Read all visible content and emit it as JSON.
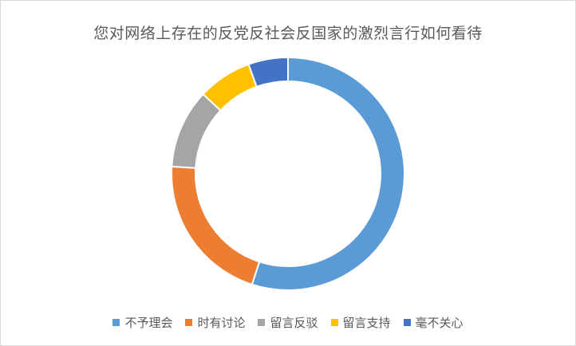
{
  "chart_data": {
    "type": "pie",
    "variant": "doughnut",
    "title": "您对网络上存在的反党反社会反国家的激烈言行如何看待",
    "categories": [
      "不予理会",
      "时有讨论",
      "留言反驳",
      "留言支持",
      "毫不关心"
    ],
    "values": [
      55,
      21,
      11,
      7.5,
      5.5
    ],
    "colors": [
      "#5B9BD5",
      "#ED7D31",
      "#A5A5A5",
      "#FFC000",
      "#4472C4"
    ],
    "legend_position": "bottom",
    "data_labels": false
  }
}
